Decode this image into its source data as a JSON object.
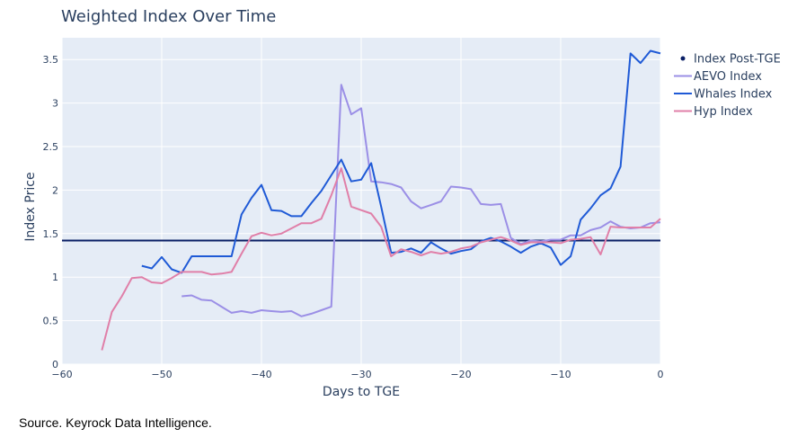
{
  "chart_data": {
    "type": "line",
    "title": "Weighted Index Over Time",
    "xlabel": "Days to TGE",
    "ylabel": "Index Price",
    "xlim": [
      -60,
      0
    ],
    "ylim": [
      0,
      3.75
    ],
    "grid": true,
    "legend_position": "top-right",
    "x_ticks": [
      {
        "v": -60,
        "label": "−60"
      },
      {
        "v": -50,
        "label": "−50"
      },
      {
        "v": -40,
        "label": "−40"
      },
      {
        "v": -30,
        "label": "−30"
      },
      {
        "v": -20,
        "label": "−20"
      },
      {
        "v": -10,
        "label": "−10"
      },
      {
        "v": 0,
        "label": "0"
      }
    ],
    "y_ticks": [
      {
        "v": 0,
        "label": "0"
      },
      {
        "v": 0.5,
        "label": "0.5"
      },
      {
        "v": 1,
        "label": "1"
      },
      {
        "v": 1.5,
        "label": "1.5"
      },
      {
        "v": 2,
        "label": "2"
      },
      {
        "v": 2.5,
        "label": "2.5"
      },
      {
        "v": 3,
        "label": "3"
      },
      {
        "v": 3.5,
        "label": "3.5"
      }
    ],
    "reference_line": {
      "name": "Index Post-TGE",
      "y": 1.42,
      "color": "#0a1f66"
    },
    "series": [
      {
        "name": "AEVO Index",
        "color": "#9b8fe6",
        "points": [
          [
            -48,
            0.78
          ],
          [
            -47,
            0.79
          ],
          [
            -46,
            0.74
          ],
          [
            -45,
            0.73
          ],
          [
            -44,
            0.66
          ],
          [
            -43,
            0.59
          ],
          [
            -42,
            0.61
          ],
          [
            -41,
            0.59
          ],
          [
            -40,
            0.62
          ],
          [
            -39,
            0.61
          ],
          [
            -38,
            0.6
          ],
          [
            -37,
            0.61
          ],
          [
            -36,
            0.55
          ],
          [
            -35,
            0.58
          ],
          [
            -34,
            0.62
          ],
          [
            -33,
            0.66
          ],
          [
            -32,
            3.21
          ],
          [
            -31,
            2.87
          ],
          [
            -30,
            2.94
          ],
          [
            -29,
            2.1
          ],
          [
            -28,
            2.09
          ],
          [
            -27,
            2.07
          ],
          [
            -26,
            2.03
          ],
          [
            -25,
            1.87
          ],
          [
            -24,
            1.79
          ],
          [
            -23,
            1.83
          ],
          [
            -22,
            1.87
          ],
          [
            -21,
            2.04
          ],
          [
            -20,
            2.03
          ],
          [
            -19,
            2.01
          ],
          [
            -18,
            1.84
          ],
          [
            -17,
            1.83
          ],
          [
            -16,
            1.84
          ],
          [
            -15,
            1.45
          ],
          [
            -14,
            1.38
          ],
          [
            -13,
            1.42
          ],
          [
            -12,
            1.41
          ],
          [
            -11,
            1.43
          ],
          [
            -10,
            1.43
          ],
          [
            -9,
            1.48
          ],
          [
            -8,
            1.48
          ],
          [
            -7,
            1.54
          ],
          [
            -6,
            1.57
          ],
          [
            -5,
            1.64
          ],
          [
            -4,
            1.58
          ],
          [
            -3,
            1.56
          ],
          [
            -2,
            1.57
          ],
          [
            -1,
            1.62
          ],
          [
            0,
            1.63
          ]
        ]
      },
      {
        "name": "Whales Index",
        "color": "#1f5ad6",
        "points": [
          [
            -52,
            1.13
          ],
          [
            -51,
            1.1
          ],
          [
            -50,
            1.23
          ],
          [
            -49,
            1.09
          ],
          [
            -48,
            1.05
          ],
          [
            -47,
            1.24
          ],
          [
            -46,
            1.24
          ],
          [
            -45,
            1.24
          ],
          [
            -44,
            1.24
          ],
          [
            -43,
            1.24
          ],
          [
            -42,
            1.72
          ],
          [
            -41,
            1.91
          ],
          [
            -40,
            2.06
          ],
          [
            -39,
            1.77
          ],
          [
            -38,
            1.76
          ],
          [
            -37,
            1.7
          ],
          [
            -36,
            1.7
          ],
          [
            -35,
            1.85
          ],
          [
            -34,
            1.99
          ],
          [
            -33,
            2.17
          ],
          [
            -32,
            2.35
          ],
          [
            -31,
            2.1
          ],
          [
            -30,
            2.12
          ],
          [
            -29,
            2.31
          ],
          [
            -28,
            1.81
          ],
          [
            -27,
            1.28
          ],
          [
            -26,
            1.29
          ],
          [
            -25,
            1.33
          ],
          [
            -24,
            1.28
          ],
          [
            -23,
            1.4
          ],
          [
            -22,
            1.33
          ],
          [
            -21,
            1.27
          ],
          [
            -20,
            1.3
          ],
          [
            -19,
            1.32
          ],
          [
            -18,
            1.41
          ],
          [
            -17,
            1.45
          ],
          [
            -16,
            1.41
          ],
          [
            -15,
            1.35
          ],
          [
            -14,
            1.28
          ],
          [
            -13,
            1.35
          ],
          [
            -12,
            1.39
          ],
          [
            -11,
            1.34
          ],
          [
            -10,
            1.14
          ],
          [
            -9,
            1.24
          ],
          [
            -8,
            1.66
          ],
          [
            -7,
            1.79
          ],
          [
            -6,
            1.94
          ],
          [
            -5,
            2.02
          ],
          [
            -4,
            2.27
          ],
          [
            -3,
            3.57
          ],
          [
            -2,
            3.46
          ],
          [
            -1,
            3.6
          ],
          [
            0,
            3.57
          ]
        ]
      },
      {
        "name": "Hyp Index",
        "color": "#e07fa8",
        "points": [
          [
            -56,
            0.16
          ],
          [
            -55,
            0.6
          ],
          [
            -54,
            0.78
          ],
          [
            -53,
            0.99
          ],
          [
            -52,
            1.0
          ],
          [
            -51,
            0.94
          ],
          [
            -50,
            0.93
          ],
          [
            -49,
            0.99
          ],
          [
            -48,
            1.06
          ],
          [
            -47,
            1.06
          ],
          [
            -46,
            1.06
          ],
          [
            -45,
            1.03
          ],
          [
            -44,
            1.04
          ],
          [
            -43,
            1.06
          ],
          [
            -42,
            1.27
          ],
          [
            -41,
            1.47
          ],
          [
            -40,
            1.51
          ],
          [
            -39,
            1.48
          ],
          [
            -38,
            1.5
          ],
          [
            -37,
            1.56
          ],
          [
            -36,
            1.62
          ],
          [
            -35,
            1.62
          ],
          [
            -34,
            1.67
          ],
          [
            -33,
            1.94
          ],
          [
            -32,
            2.25
          ],
          [
            -31,
            1.81
          ],
          [
            -30,
            1.77
          ],
          [
            -29,
            1.73
          ],
          [
            -28,
            1.58
          ],
          [
            -27,
            1.24
          ],
          [
            -26,
            1.32
          ],
          [
            -25,
            1.29
          ],
          [
            -24,
            1.25
          ],
          [
            -23,
            1.29
          ],
          [
            -22,
            1.27
          ],
          [
            -21,
            1.29
          ],
          [
            -20,
            1.33
          ],
          [
            -19,
            1.35
          ],
          [
            -18,
            1.4
          ],
          [
            -17,
            1.43
          ],
          [
            -16,
            1.46
          ],
          [
            -15,
            1.42
          ],
          [
            -14,
            1.37
          ],
          [
            -13,
            1.4
          ],
          [
            -12,
            1.4
          ],
          [
            -11,
            1.4
          ],
          [
            -10,
            1.39
          ],
          [
            -9,
            1.43
          ],
          [
            -8,
            1.44
          ],
          [
            -7,
            1.46
          ],
          [
            -6,
            1.26
          ],
          [
            -5,
            1.58
          ],
          [
            -4,
            1.57
          ],
          [
            -3,
            1.57
          ],
          [
            -2,
            1.57
          ],
          [
            -1,
            1.57
          ],
          [
            0,
            1.67
          ]
        ]
      }
    ]
  },
  "source_text": "Source. Keyrock Data Intelligence."
}
